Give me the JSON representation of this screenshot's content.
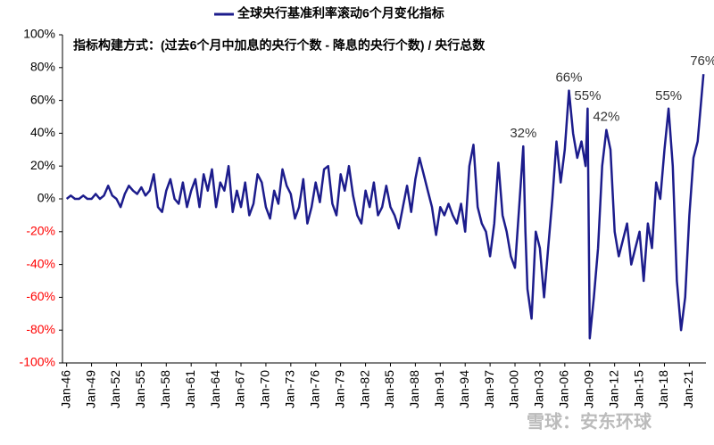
{
  "chart_data": {
    "type": "line",
    "title": "全球央行基准利率滚动6个月变化指标",
    "subtitle": "指标构建方式：(过去6个月中加息的央行个数 - 降息的央行个数) / 央行总数",
    "watermark": "雪球：安东环球",
    "legend": "top",
    "series": [
      {
        "name": "全球央行基准利率滚动6个月变化指标",
        "color": "#1c1c8c",
        "x": [
          1946,
          1946.5,
          1947,
          1947.5,
          1948,
          1948.5,
          1949,
          1949.5,
          1950,
          1950.5,
          1951,
          1951.5,
          1952,
          1952.5,
          1953,
          1953.5,
          1954,
          1954.5,
          1955,
          1955.5,
          1956,
          1956.5,
          1957,
          1957.5,
          1958,
          1958.5,
          1959,
          1959.5,
          1960,
          1960.5,
          1961,
          1961.5,
          1962,
          1962.5,
          1963,
          1963.5,
          1964,
          1964.5,
          1965,
          1965.5,
          1966,
          1966.5,
          1967,
          1967.5,
          1968,
          1968.5,
          1969,
          1969.5,
          1970,
          1970.5,
          1971,
          1971.5,
          1972,
          1972.5,
          1973,
          1973.5,
          1974,
          1974.5,
          1975,
          1975.5,
          1976,
          1976.5,
          1977,
          1977.5,
          1978,
          1978.5,
          1979,
          1979.5,
          1980,
          1980.5,
          1981,
          1981.5,
          1982,
          1982.5,
          1983,
          1983.5,
          1984,
          1984.5,
          1985,
          1985.5,
          1986,
          1986.5,
          1987,
          1987.5,
          1988,
          1988.5,
          1989,
          1989.5,
          1990,
          1990.5,
          1991,
          1991.5,
          1992,
          1992.5,
          1993,
          1993.5,
          1994,
          1994.5,
          1995,
          1995.5,
          1996,
          1996.5,
          1997,
          1997.5,
          1998,
          1998.5,
          1999,
          1999.5,
          2000,
          2000.5,
          2001,
          2001.25,
          2001.5,
          2002,
          2002.5,
          2003,
          2003.5,
          2004,
          2004.5,
          2005,
          2005.5,
          2006,
          2006.5,
          2007,
          2007.5,
          2008,
          2008.5,
          2008.75,
          2009,
          2009.5,
          2010,
          2010.5,
          2011,
          2011.5,
          2012,
          2012.5,
          2013,
          2013.5,
          2014,
          2014.5,
          2015,
          2015.5,
          2016,
          2016.5,
          2017,
          2017.5,
          2018,
          2018.5,
          2019,
          2019.5,
          2020,
          2020.5,
          2021,
          2021.5,
          2022,
          2022.7
        ],
        "values": [
          0,
          2,
          0,
          0,
          2,
          0,
          0,
          3,
          0,
          2,
          8,
          2,
          0,
          -5,
          3,
          8,
          5,
          3,
          7,
          2,
          5,
          15,
          -5,
          -8,
          5,
          12,
          0,
          -3,
          10,
          -5,
          5,
          12,
          -5,
          15,
          5,
          18,
          -5,
          10,
          5,
          20,
          -8,
          5,
          -5,
          10,
          -10,
          -3,
          15,
          10,
          -5,
          -12,
          5,
          -3,
          18,
          8,
          3,
          -12,
          -5,
          12,
          -15,
          -5,
          10,
          -2,
          18,
          20,
          -3,
          -10,
          15,
          5,
          20,
          2,
          -10,
          -15,
          5,
          -5,
          10,
          -10,
          -5,
          8,
          -5,
          -10,
          -18,
          -5,
          8,
          -8,
          12,
          25,
          15,
          5,
          -5,
          -22,
          -5,
          -10,
          -3,
          -10,
          -15,
          -3,
          -20,
          20,
          33,
          -5,
          -15,
          -20,
          -35,
          -15,
          22,
          -10,
          -20,
          -35,
          -42,
          -5,
          32,
          -20,
          -55,
          -73,
          -20,
          -30,
          -60,
          -30,
          0,
          35,
          10,
          30,
          66,
          40,
          25,
          35,
          20,
          55,
          -85,
          -60,
          -30,
          20,
          42,
          30,
          -20,
          -35,
          -25,
          -15,
          -40,
          -30,
          -20,
          -50,
          -15,
          -30,
          10,
          0,
          30,
          55,
          20,
          -50,
          -80,
          -60,
          -10,
          25,
          35,
          76
        ]
      }
    ],
    "annotations": [
      {
        "text": "32%",
        "x": 2001,
        "value": 32
      },
      {
        "text": "66%",
        "x": 2006.5,
        "value": 66
      },
      {
        "text": "55%",
        "x": 2008.75,
        "value": 55
      },
      {
        "text": "42%",
        "x": 2011,
        "value": 42
      },
      {
        "text": "55%",
        "x": 2018.5,
        "value": 55
      },
      {
        "text": "76%",
        "x": 2022.7,
        "value": 76
      }
    ],
    "xlim": [
      1945.5,
      2023
    ],
    "xticks": [
      {
        "value": 1946,
        "label": "Jan-46"
      },
      {
        "value": 1949,
        "label": "Jan-49"
      },
      {
        "value": 1952,
        "label": "Jan-52"
      },
      {
        "value": 1955,
        "label": "Jan-55"
      },
      {
        "value": 1958,
        "label": "Jan-58"
      },
      {
        "value": 1961,
        "label": "Jan-61"
      },
      {
        "value": 1964,
        "label": "Jan-64"
      },
      {
        "value": 1967,
        "label": "Jan-67"
      },
      {
        "value": 1970,
        "label": "Jan-70"
      },
      {
        "value": 1973,
        "label": "Jan-73"
      },
      {
        "value": 1976,
        "label": "Jan-76"
      },
      {
        "value": 1979,
        "label": "Jan-79"
      },
      {
        "value": 1982,
        "label": "Jan-82"
      },
      {
        "value": 1985,
        "label": "Jan-85"
      },
      {
        "value": 1988,
        "label": "Jan-88"
      },
      {
        "value": 1991,
        "label": "Jan-91"
      },
      {
        "value": 1994,
        "label": "Jan-94"
      },
      {
        "value": 1997,
        "label": "Jan-97"
      },
      {
        "value": 2000,
        "label": "Jan-00"
      },
      {
        "value": 2003,
        "label": "Jan-03"
      },
      {
        "value": 2006,
        "label": "Jan-06"
      },
      {
        "value": 2009,
        "label": "Jan-09"
      },
      {
        "value": 2012,
        "label": "Jan-12"
      },
      {
        "value": 2015,
        "label": "Jan-15"
      },
      {
        "value": 2018,
        "label": "Jan-18"
      },
      {
        "value": 2021,
        "label": "Jan-21"
      }
    ],
    "ylim": [
      -100,
      100
    ],
    "yticks": [
      {
        "value": -100,
        "label": "-100%"
      },
      {
        "value": -80,
        "label": "-80%"
      },
      {
        "value": -60,
        "label": "-60%"
      },
      {
        "value": -40,
        "label": "-40%"
      },
      {
        "value": -20,
        "label": "-20%"
      },
      {
        "value": 0,
        "label": "0%"
      },
      {
        "value": 20,
        "label": "20%"
      },
      {
        "value": 40,
        "label": "40%"
      },
      {
        "value": 60,
        "label": "60%"
      },
      {
        "value": 80,
        "label": "80%"
      },
      {
        "value": 100,
        "label": "100%"
      }
    ],
    "negative_tick_color": "#ff0000",
    "grid": false
  }
}
